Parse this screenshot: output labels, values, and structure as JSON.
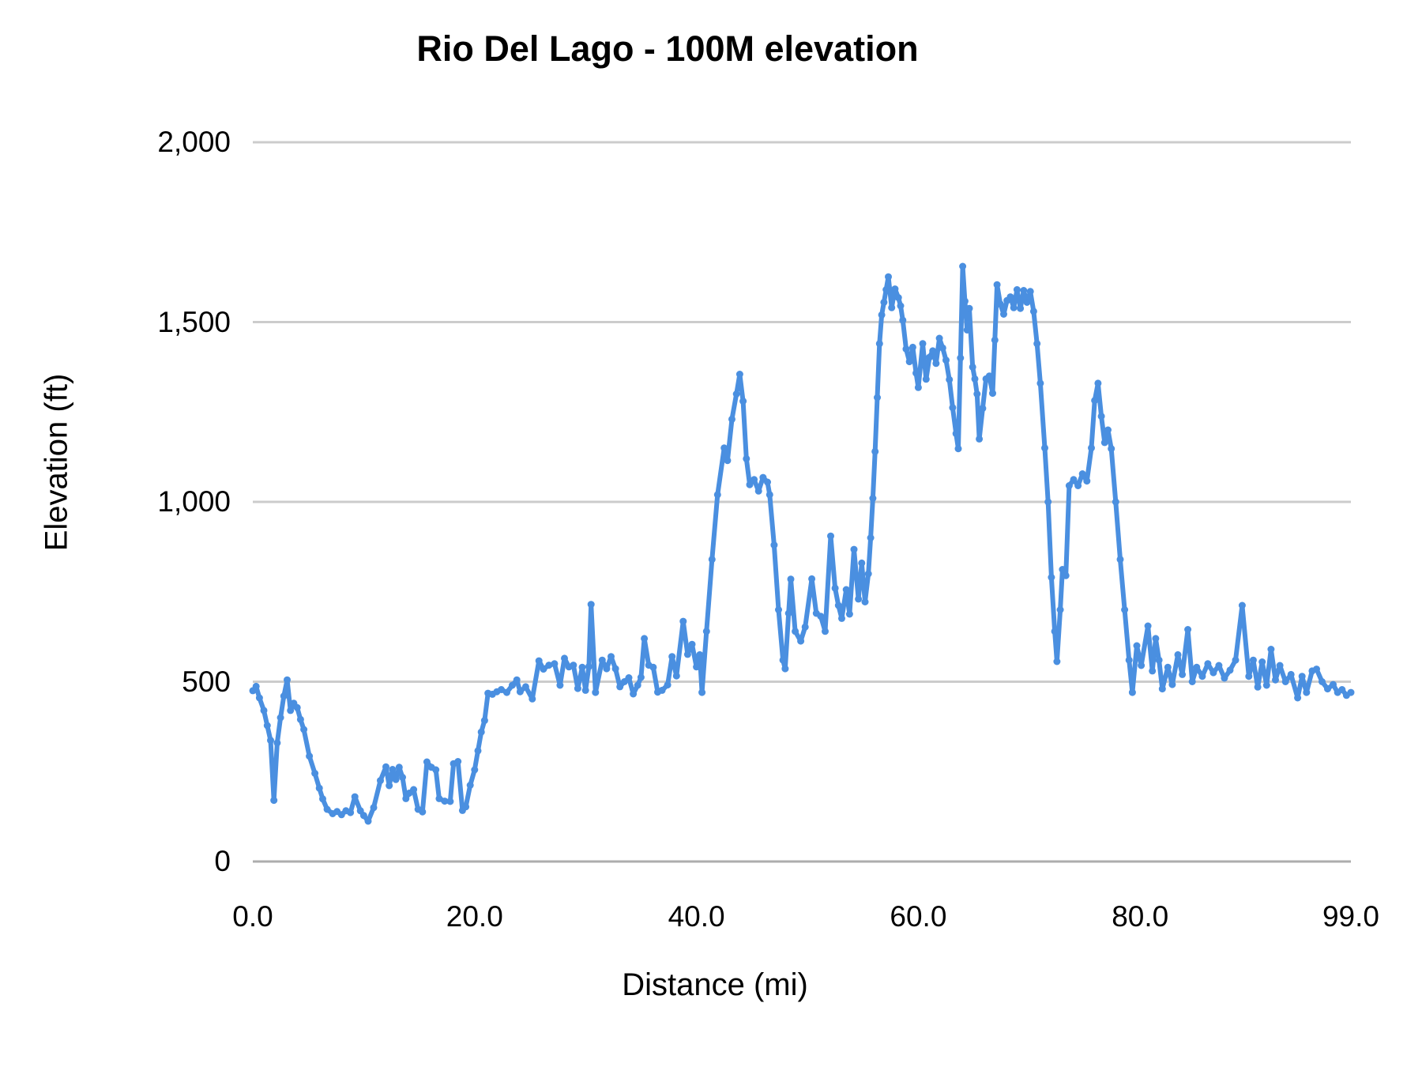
{
  "title": "Rio Del Lago - 100M elevation",
  "colors": {
    "line": "#4a8fe0",
    "grid": "#cccccc",
    "baseline": "#adadad",
    "text": "#000000",
    "background": "#ffffff"
  },
  "chart_data": {
    "type": "line",
    "title": "Rio Del Lago - 100M elevation",
    "xlabel": "Distance (mi)",
    "ylabel": "Elevation (ft)",
    "xlim": [
      0,
      99
    ],
    "ylim": [
      0,
      2000
    ],
    "grid": true,
    "legend_position": "none",
    "x_ticks": [
      {
        "value": 0,
        "label": "0.0"
      },
      {
        "value": 20,
        "label": "20.0"
      },
      {
        "value": 40,
        "label": "40.0"
      },
      {
        "value": 60,
        "label": "60.0"
      },
      {
        "value": 80,
        "label": "80.0"
      },
      {
        "value": 99,
        "label": "99.0"
      }
    ],
    "y_ticks": [
      {
        "value": 0,
        "label": "0"
      },
      {
        "value": 500,
        "label": "500"
      },
      {
        "value": 1000,
        "label": "1,000"
      },
      {
        "value": 1500,
        "label": "1,500"
      },
      {
        "value": 2000,
        "label": "2,000"
      }
    ],
    "series": [
      {
        "name": "elevation",
        "points": [
          [
            0,
            475
          ],
          [
            0.3,
            487
          ],
          [
            0.6,
            455
          ],
          [
            1,
            420
          ],
          [
            1.3,
            378
          ],
          [
            1.6,
            337
          ],
          [
            1.9,
            170
          ],
          [
            2.2,
            330
          ],
          [
            2.5,
            400
          ],
          [
            2.8,
            460
          ],
          [
            3.1,
            505
          ],
          [
            3.4,
            420
          ],
          [
            3.7,
            440
          ],
          [
            4,
            428
          ],
          [
            4.3,
            395
          ],
          [
            4.6,
            367
          ],
          [
            5.1,
            293
          ],
          [
            5.6,
            245
          ],
          [
            6,
            204
          ],
          [
            6.3,
            174
          ],
          [
            6.7,
            145
          ],
          [
            7.2,
            133
          ],
          [
            7.6,
            139
          ],
          [
            8,
            130
          ],
          [
            8.4,
            141
          ],
          [
            8.8,
            136
          ],
          [
            9.2,
            180
          ],
          [
            9.7,
            141
          ],
          [
            10,
            128
          ],
          [
            10.4,
            112
          ],
          [
            10.9,
            150
          ],
          [
            11.5,
            225
          ],
          [
            12,
            263
          ],
          [
            12.3,
            211
          ],
          [
            12.6,
            256
          ],
          [
            12.9,
            228
          ],
          [
            13.2,
            262
          ],
          [
            13.5,
            234
          ],
          [
            13.8,
            175
          ],
          [
            14.1,
            190
          ],
          [
            14.5,
            200
          ],
          [
            14.9,
            145
          ],
          [
            15.3,
            138
          ],
          [
            15.7,
            277
          ],
          [
            16.1,
            262
          ],
          [
            16.5,
            255
          ],
          [
            16.8,
            175
          ],
          [
            17.3,
            168
          ],
          [
            17.8,
            167
          ],
          [
            18.1,
            272
          ],
          [
            18.5,
            278
          ],
          [
            18.9,
            142
          ],
          [
            19.2,
            152
          ],
          [
            19.6,
            212
          ],
          [
            20,
            255
          ],
          [
            20.3,
            308
          ],
          [
            20.6,
            360
          ],
          [
            20.9,
            392
          ],
          [
            21.2,
            468
          ],
          [
            21.6,
            465
          ],
          [
            22,
            472
          ],
          [
            22.4,
            478
          ],
          [
            22.9,
            470
          ],
          [
            23.4,
            490
          ],
          [
            23.8,
            505
          ],
          [
            24.1,
            472
          ],
          [
            24.6,
            486
          ],
          [
            25.2,
            452
          ],
          [
            25.8,
            558
          ],
          [
            26.2,
            535
          ],
          [
            26.7,
            546
          ],
          [
            27.2,
            550
          ],
          [
            27.7,
            490
          ],
          [
            28.1,
            565
          ],
          [
            28.5,
            541
          ],
          [
            28.9,
            546
          ],
          [
            29.3,
            481
          ],
          [
            29.7,
            540
          ],
          [
            30,
            476
          ],
          [
            30.3,
            542
          ],
          [
            30.5,
            715
          ],
          [
            30.9,
            470
          ],
          [
            31.5,
            560
          ],
          [
            31.9,
            536
          ],
          [
            32.3,
            570
          ],
          [
            32.7,
            536
          ],
          [
            33.1,
            486
          ],
          [
            33.5,
            500
          ],
          [
            33.9,
            511
          ],
          [
            34.3,
            466
          ],
          [
            34.7,
            490
          ],
          [
            35,
            512
          ],
          [
            35.3,
            620
          ],
          [
            35.7,
            546
          ],
          [
            36.1,
            540
          ],
          [
            36.5,
            471
          ],
          [
            36.9,
            476
          ],
          [
            37.4,
            491
          ],
          [
            37.8,
            570
          ],
          [
            38.2,
            516
          ],
          [
            38.8,
            668
          ],
          [
            39.2,
            576
          ],
          [
            39.6,
            604
          ],
          [
            40,
            541
          ],
          [
            40.3,
            575
          ],
          [
            40.5,
            470
          ],
          [
            40.9,
            640
          ],
          [
            41.4,
            840
          ],
          [
            41.9,
            1020
          ],
          [
            42.5,
            1150
          ],
          [
            42.8,
            1115
          ],
          [
            43.2,
            1230
          ],
          [
            43.6,
            1300
          ],
          [
            43.9,
            1355
          ],
          [
            44.2,
            1280
          ],
          [
            44.5,
            1120
          ],
          [
            44.8,
            1048
          ],
          [
            45.2,
            1062
          ],
          [
            45.6,
            1030
          ],
          [
            46,
            1068
          ],
          [
            46.4,
            1055
          ],
          [
            46.6,
            1020
          ],
          [
            47,
            880
          ],
          [
            47.4,
            700
          ],
          [
            47.8,
            560
          ],
          [
            48,
            536
          ],
          [
            48.3,
            690
          ],
          [
            48.5,
            785
          ],
          [
            48.9,
            640
          ],
          [
            49.4,
            613
          ],
          [
            49.8,
            652
          ],
          [
            50.4,
            786
          ],
          [
            50.8,
            690
          ],
          [
            51.2,
            682
          ],
          [
            51.6,
            640
          ],
          [
            52.1,
            905
          ],
          [
            52.5,
            760
          ],
          [
            52.8,
            712
          ],
          [
            53.1,
            676
          ],
          [
            53.5,
            756
          ],
          [
            53.8,
            688
          ],
          [
            54.2,
            868
          ],
          [
            54.6,
            730
          ],
          [
            54.9,
            830
          ],
          [
            55.2,
            722
          ],
          [
            55.5,
            800
          ],
          [
            55.7,
            900
          ],
          [
            55.9,
            1010
          ],
          [
            56.1,
            1140
          ],
          [
            56.3,
            1290
          ],
          [
            56.5,
            1440
          ],
          [
            56.7,
            1520
          ],
          [
            56.9,
            1555
          ],
          [
            57.1,
            1590
          ],
          [
            57.3,
            1626
          ],
          [
            57.6,
            1540
          ],
          [
            57.9,
            1592
          ],
          [
            58.2,
            1568
          ],
          [
            58.4,
            1545
          ],
          [
            58.6,
            1505
          ],
          [
            58.9,
            1425
          ],
          [
            59.2,
            1390
          ],
          [
            59.5,
            1430
          ],
          [
            59.8,
            1358
          ],
          [
            60,
            1318
          ],
          [
            60.4,
            1440
          ],
          [
            60.7,
            1341
          ],
          [
            61,
            1402
          ],
          [
            61.3,
            1420
          ],
          [
            61.6,
            1385
          ],
          [
            61.9,
            1455
          ],
          [
            62.2,
            1428
          ],
          [
            62.5,
            1394
          ],
          [
            62.8,
            1340
          ],
          [
            63.1,
            1262
          ],
          [
            63.4,
            1190
          ],
          [
            63.6,
            1148
          ],
          [
            63.8,
            1400
          ],
          [
            64,
            1655
          ],
          [
            64.2,
            1558
          ],
          [
            64.4,
            1478
          ],
          [
            64.6,
            1538
          ],
          [
            64.9,
            1375
          ],
          [
            65.1,
            1342
          ],
          [
            65.3,
            1300
          ],
          [
            65.5,
            1175
          ],
          [
            65.8,
            1260
          ],
          [
            66.1,
            1342
          ],
          [
            66.4,
            1350
          ],
          [
            66.7,
            1302
          ],
          [
            66.9,
            1450
          ],
          [
            67.1,
            1604
          ],
          [
            67.4,
            1550
          ],
          [
            67.7,
            1522
          ],
          [
            68,
            1560
          ],
          [
            68.3,
            1570
          ],
          [
            68.6,
            1540
          ],
          [
            68.9,
            1590
          ],
          [
            69.2,
            1538
          ],
          [
            69.5,
            1588
          ],
          [
            69.8,
            1555
          ],
          [
            70.1,
            1585
          ],
          [
            70.4,
            1530
          ],
          [
            70.7,
            1440
          ],
          [
            71,
            1330
          ],
          [
            71.4,
            1150
          ],
          [
            71.7,
            1000
          ],
          [
            72,
            790
          ],
          [
            72.3,
            640
          ],
          [
            72.5,
            556
          ],
          [
            72.8,
            700
          ],
          [
            73,
            812
          ],
          [
            73.3,
            795
          ],
          [
            73.6,
            1045
          ],
          [
            74,
            1062
          ],
          [
            74.4,
            1045
          ],
          [
            74.8,
            1078
          ],
          [
            75.2,
            1058
          ],
          [
            75.6,
            1150
          ],
          [
            75.9,
            1282
          ],
          [
            76.2,
            1330
          ],
          [
            76.5,
            1238
          ],
          [
            76.8,
            1165
          ],
          [
            77.1,
            1200
          ],
          [
            77.4,
            1148
          ],
          [
            77.8,
            1000
          ],
          [
            78.2,
            840
          ],
          [
            78.6,
            700
          ],
          [
            79,
            560
          ],
          [
            79.3,
            470
          ],
          [
            79.7,
            600
          ],
          [
            80.1,
            545
          ],
          [
            80.7,
            655
          ],
          [
            81.1,
            530
          ],
          [
            81.4,
            620
          ],
          [
            81.7,
            560
          ],
          [
            82,
            480
          ],
          [
            82.5,
            540
          ],
          [
            82.9,
            492
          ],
          [
            83.4,
            575
          ],
          [
            83.8,
            520
          ],
          [
            84.3,
            645
          ],
          [
            84.7,
            500
          ],
          [
            85.1,
            540
          ],
          [
            85.6,
            515
          ],
          [
            86.1,
            550
          ],
          [
            86.6,
            525
          ],
          [
            87.1,
            545
          ],
          [
            87.6,
            510
          ],
          [
            88.1,
            532
          ],
          [
            88.6,
            560
          ],
          [
            89.2,
            712
          ],
          [
            89.8,
            515
          ],
          [
            90.2,
            560
          ],
          [
            90.6,
            485
          ],
          [
            91,
            555
          ],
          [
            91.4,
            490
          ],
          [
            91.8,
            590
          ],
          [
            92.2,
            505
          ],
          [
            92.6,
            545
          ],
          [
            93.1,
            500
          ],
          [
            93.6,
            520
          ],
          [
            94.2,
            455
          ],
          [
            94.6,
            515
          ],
          [
            95,
            470
          ],
          [
            95.5,
            530
          ],
          [
            95.9,
            535
          ],
          [
            96.4,
            500
          ],
          [
            96.9,
            480
          ],
          [
            97.4,
            492
          ],
          [
            97.8,
            470
          ],
          [
            98.2,
            478
          ],
          [
            98.6,
            462
          ],
          [
            99,
            470
          ]
        ]
      }
    ]
  }
}
